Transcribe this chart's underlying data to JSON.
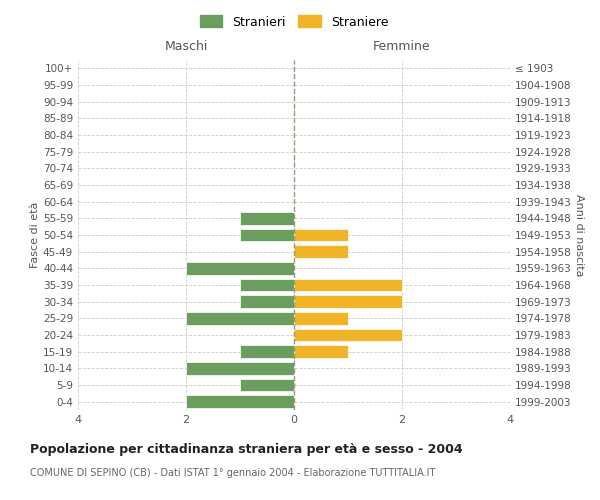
{
  "age_groups": [
    "100+",
    "95-99",
    "90-94",
    "85-89",
    "80-84",
    "75-79",
    "70-74",
    "65-69",
    "60-64",
    "55-59",
    "50-54",
    "45-49",
    "40-44",
    "35-39",
    "30-34",
    "25-29",
    "20-24",
    "15-19",
    "10-14",
    "5-9",
    "0-4"
  ],
  "birth_years": [
    "≤ 1903",
    "1904-1908",
    "1909-1913",
    "1914-1918",
    "1919-1923",
    "1924-1928",
    "1929-1933",
    "1934-1938",
    "1939-1943",
    "1944-1948",
    "1949-1953",
    "1954-1958",
    "1959-1963",
    "1964-1968",
    "1969-1973",
    "1974-1978",
    "1979-1983",
    "1984-1988",
    "1989-1993",
    "1994-1998",
    "1999-2003"
  ],
  "maschi": [
    0,
    0,
    0,
    0,
    0,
    0,
    0,
    0,
    0,
    1,
    1,
    0,
    2,
    1,
    1,
    2,
    0,
    1,
    2,
    1,
    2
  ],
  "femmine": [
    0,
    0,
    0,
    0,
    0,
    0,
    0,
    0,
    0,
    0,
    1,
    1,
    0,
    2,
    2,
    1,
    2,
    1,
    0,
    0,
    0
  ],
  "color_maschi": "#6b9e5e",
  "color_femmine": "#f0b429",
  "title": "Popolazione per cittadinanza straniera per età e sesso - 2004",
  "subtitle": "COMUNE DI SEPINO (CB) - Dati ISTAT 1° gennaio 2004 - Elaborazione TUTTITALIA.IT",
  "header_left": "Maschi",
  "header_right": "Femmine",
  "ylabel_left": "Fasce di età",
  "ylabel_right": "Anni di nascita",
  "legend_maschi": "Stranieri",
  "legend_femmine": "Straniere",
  "xlim": 4,
  "background_color": "#ffffff",
  "grid_color": "#cccccc"
}
